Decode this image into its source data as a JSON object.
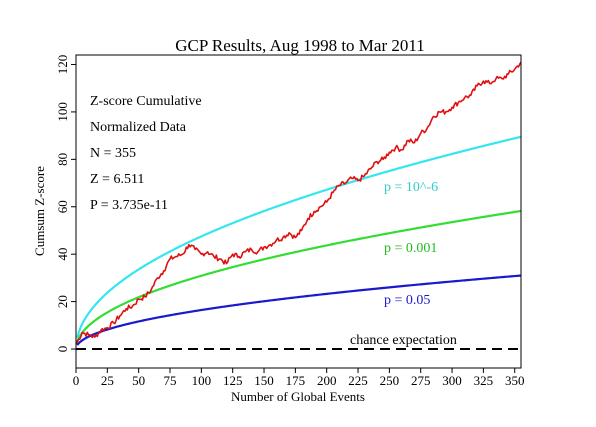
{
  "chart_data": {
    "type": "line",
    "title": "GCP Results, Aug 1998 to Mar 2011",
    "xlabel": "Number of Global Events",
    "ylabel": "Cumsum Z-score",
    "xlim": [
      0,
      355
    ],
    "ylim": [
      -8,
      124
    ],
    "x_ticks": [
      0,
      25,
      50,
      75,
      100,
      125,
      150,
      175,
      200,
      225,
      250,
      275,
      300,
      325,
      350
    ],
    "y_ticks": [
      0,
      20,
      40,
      60,
      80,
      100,
      120
    ],
    "grid": false,
    "annotations": [
      {
        "text": "Z-score Cumulative"
      },
      {
        "text": "Normalized Data"
      },
      {
        "text": "N = 355"
      },
      {
        "text": "Z = 6.511"
      },
      {
        "text": "P = 3.735e-11"
      }
    ],
    "series": [
      {
        "name": "cumulative Z-score",
        "color": "#e01010",
        "x": [
          0,
          5,
          10,
          15,
          20,
          25,
          30,
          35,
          40,
          45,
          50,
          55,
          60,
          65,
          70,
          75,
          80,
          85,
          90,
          95,
          100,
          105,
          110,
          115,
          120,
          125,
          130,
          135,
          140,
          145,
          150,
          155,
          160,
          165,
          170,
          175,
          180,
          185,
          190,
          195,
          200,
          205,
          210,
          215,
          220,
          225,
          230,
          235,
          240,
          245,
          250,
          255,
          260,
          265,
          270,
          275,
          280,
          285,
          290,
          295,
          300,
          305,
          310,
          315,
          320,
          325,
          330,
          335,
          340,
          345,
          350,
          355
        ],
        "values": [
          2,
          7,
          6,
          5,
          8,
          9,
          11,
          14,
          17,
          18,
          21,
          22,
          25,
          30,
          33,
          38,
          39,
          40,
          44,
          42,
          40,
          41,
          39,
          38,
          36,
          40,
          39,
          41,
          42,
          41,
          43,
          44,
          46,
          47,
          49,
          47,
          50,
          55,
          58,
          60,
          62,
          66,
          69,
          70,
          72,
          71,
          73,
          76,
          79,
          80,
          83,
          85,
          84,
          88,
          87,
          91,
          93,
          98,
          100,
          100,
          102,
          104,
          106,
          107,
          111,
          113,
          112,
          114,
          114,
          116,
          118,
          121
        ]
      },
      {
        "name": "p = 10^-6",
        "color": "#33e6f0",
        "label_color": "#33cccc",
        "coef": 4.75
      },
      {
        "name": "p = 0.001",
        "color": "#33dd33",
        "label_color": "#22bb22",
        "coef": 3.09
      },
      {
        "name": "p = 0.05",
        "color": "#1a1acc",
        "label_color": "#1a1acc",
        "coef": 1.645
      },
      {
        "name": "chance expectation",
        "color": "#000000",
        "style": "dashed",
        "constant": 0
      }
    ]
  }
}
